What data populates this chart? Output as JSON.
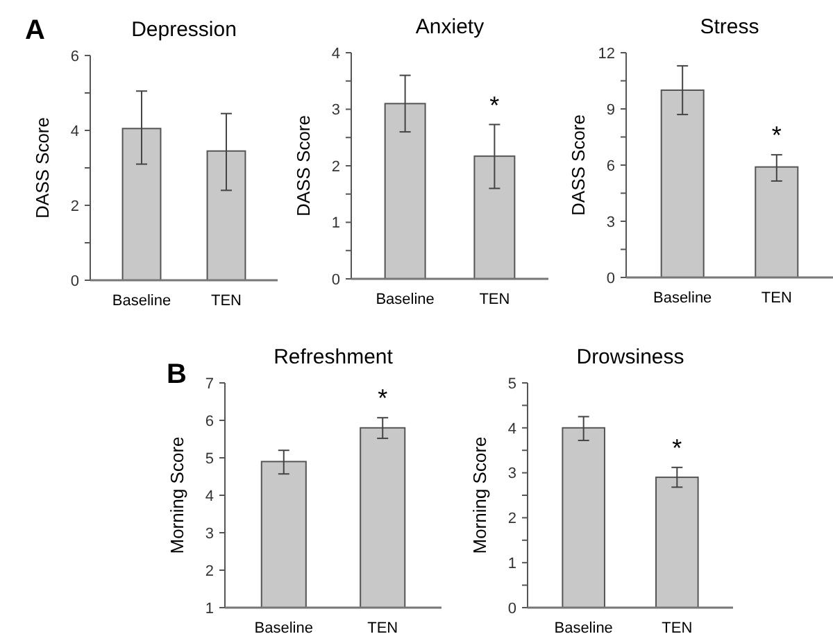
{
  "chart_data": [
    {
      "type": "bar",
      "title": "Depression",
      "ylabel": "DASS Score",
      "categories": [
        "Baseline",
        "TEN"
      ],
      "values": [
        4.05,
        3.45
      ],
      "errors": [
        [
          3.1,
          5.05
        ],
        [
          2.4,
          4.45
        ]
      ],
      "color": "#c8c8c8",
      "ylim": [
        0,
        6
      ],
      "yticks": [
        0,
        {
          "value": 1,
          "label": null
        },
        2,
        {
          "value": 3,
          "label": null
        },
        4,
        {
          "value": 5,
          "label": null
        },
        6
      ],
      "annotations": [
        "A"
      ]
    },
    {
      "type": "bar",
      "title": "Anxiety",
      "ylabel": "DASS Score",
      "categories": [
        "Baseline",
        "TEN"
      ],
      "values": [
        3.1,
        2.17
      ],
      "errors": [
        [
          2.6,
          3.6
        ],
        [
          1.6,
          2.73
        ]
      ],
      "color": "#c8c8c8",
      "ylim": [
        0,
        4
      ],
      "yticks": [
        0,
        {
          "value": 0.5,
          "label": null
        },
        1,
        {
          "value": 1.5,
          "label": null
        },
        2,
        {
          "value": 2.5,
          "label": null
        },
        3,
        {
          "value": 3.5,
          "label": null
        },
        4
      ],
      "annotations": [
        {
          "text": "*",
          "x": "TEN",
          "y": 2.73
        }
      ]
    },
    {
      "type": "bar",
      "title": "Stress",
      "ylabel": "DASS Score",
      "categories": [
        "Baseline",
        "TEN"
      ],
      "values": [
        10,
        5.9
      ],
      "errors": [
        [
          8.7,
          11.3
        ],
        [
          5.15,
          6.55
        ]
      ],
      "color": "#c8c8c8",
      "ylim": [
        0,
        12
      ],
      "yticks": [
        0,
        {
          "value": 1.5,
          "label": null
        },
        3,
        {
          "value": 4.5,
          "label": null
        },
        6,
        {
          "value": 7.5,
          "label": null
        },
        9,
        {
          "value": 10.5,
          "label": null
        },
        12
      ],
      "annotations": [
        {
          "text": "*",
          "x": "TEN",
          "y": 6.55
        }
      ]
    },
    {
      "type": "bar",
      "title": "Refreshment",
      "ylabel": "Morning Score",
      "categories": [
        "Baseline",
        "TEN"
      ],
      "values": [
        4.9,
        5.8
      ],
      "errors": [
        [
          4.57,
          5.2
        ],
        [
          5.52,
          6.07
        ]
      ],
      "color": "#c8c8c8",
      "ylim": [
        1,
        7
      ],
      "yticks": [
        1,
        2,
        3,
        4,
        5,
        6,
        7
      ],
      "annotations": [
        "B",
        {
          "text": "*",
          "x": "TEN",
          "y": 6.07
        }
      ]
    },
    {
      "type": "bar",
      "title": "Drowsiness",
      "ylabel": "Morning Score",
      "categories": [
        "Baseline",
        "TEN"
      ],
      "values": [
        4.0,
        2.9
      ],
      "errors": [
        [
          3.72,
          4.25
        ],
        [
          2.68,
          3.12
        ]
      ],
      "color": "#c8c8c8",
      "ylim": [
        0,
        5
      ],
      "yticks": [
        0,
        {
          "value": 0.5,
          "label": null
        },
        1,
        {
          "value": 1.5,
          "label": null
        },
        2,
        {
          "value": 2.5,
          "label": null
        },
        3,
        {
          "value": 3.5,
          "label": null
        },
        4,
        {
          "value": 4.5,
          "label": null
        },
        5
      ],
      "annotations": [
        {
          "text": "*",
          "x": "TEN",
          "y": 3.12
        }
      ]
    }
  ]
}
